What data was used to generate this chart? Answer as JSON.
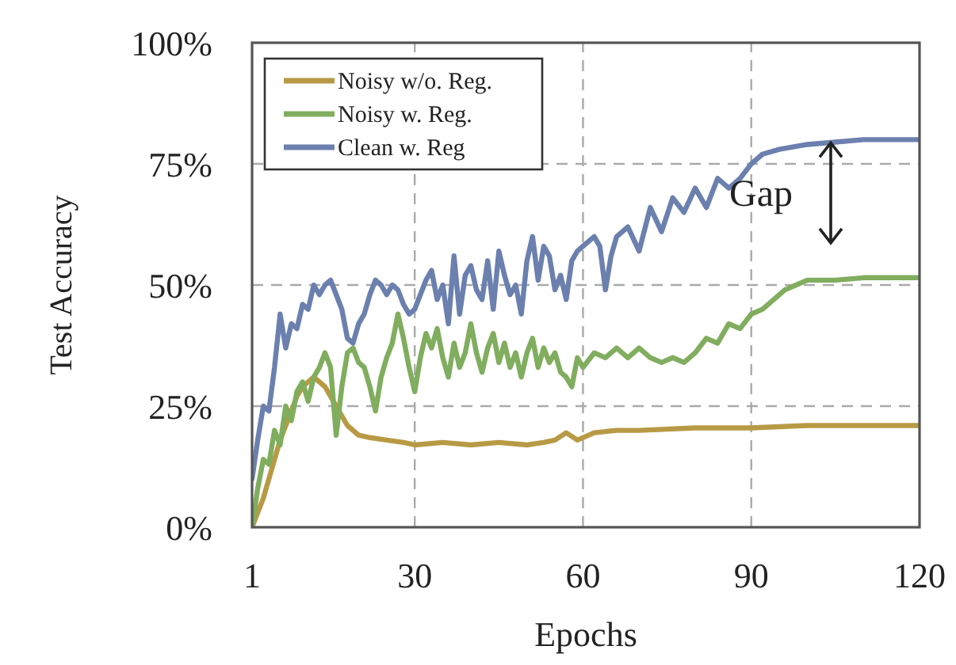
{
  "chart_data": {
    "type": "line",
    "xlabel": "Epochs",
    "ylabel": "Test Accuracy",
    "xlim": [
      1,
      120
    ],
    "ylim": [
      0,
      100
    ],
    "xticks": [
      1,
      30,
      60,
      90,
      120
    ],
    "yticks": [
      {
        "value": 0,
        "label": "0%"
      },
      {
        "value": 25,
        "label": "25%"
      },
      {
        "value": 50,
        "label": "50%"
      },
      {
        "value": 75,
        "label": "75%"
      },
      {
        "value": 100,
        "label": "100%"
      }
    ],
    "grid": true,
    "legend": "top left",
    "line_style": "solid",
    "marker": "none",
    "annotations": [
      "Gap"
    ],
    "series": [
      {
        "name": "Noisy w/o. Reg.",
        "color": "#b89a45",
        "x": [
          1,
          2,
          3,
          4,
          5,
          6,
          7,
          8,
          9,
          10,
          11,
          12,
          13,
          14,
          15,
          16,
          17,
          18,
          20,
          22,
          25,
          28,
          30,
          35,
          40,
          45,
          50,
          53,
          55,
          57,
          59,
          62,
          66,
          70,
          80,
          90,
          100,
          110,
          120
        ],
        "values": [
          0,
          3,
          6,
          10,
          14,
          18,
          21,
          24,
          27,
          29,
          30,
          31,
          30,
          29,
          27,
          25,
          23,
          21,
          19,
          18.5,
          18,
          17.5,
          17,
          17.5,
          17,
          17.5,
          17,
          17.5,
          18,
          19.5,
          18,
          19.5,
          20,
          20,
          20.5,
          20.5,
          21,
          21,
          21
        ]
      },
      {
        "name": "Noisy w. Reg.",
        "color": "#80ad5e",
        "x": [
          1,
          2,
          3,
          4,
          5,
          6,
          7,
          8,
          9,
          10,
          11,
          12,
          13,
          14,
          15,
          16,
          17,
          18,
          19,
          20,
          21,
          22,
          23,
          24,
          25,
          26,
          27,
          28,
          29,
          30,
          31,
          32,
          33,
          34,
          35,
          36,
          37,
          38,
          39,
          40,
          41,
          42,
          43,
          44,
          45,
          46,
          47,
          48,
          49,
          50,
          51,
          52,
          53,
          54,
          55,
          56,
          57,
          58,
          59,
          60,
          62,
          64,
          66,
          68,
          70,
          72,
          74,
          76,
          78,
          80,
          82,
          84,
          86,
          88,
          90,
          92,
          94,
          96,
          98,
          100,
          105,
          110,
          115,
          120
        ],
        "values": [
          0,
          8,
          14,
          13,
          20,
          17,
          25,
          22,
          28,
          30,
          26,
          31,
          33,
          36,
          33,
          19,
          29,
          36,
          37,
          34,
          33,
          29,
          24,
          31,
          35,
          38,
          44,
          39,
          33,
          28,
          35,
          40,
          37,
          41,
          35,
          31,
          38,
          33,
          36,
          42,
          36,
          32,
          37,
          40,
          34,
          38,
          33,
          36,
          31,
          36,
          39,
          33,
          37,
          34,
          36,
          32,
          31,
          29,
          35,
          33,
          36,
          35,
          37,
          35,
          37,
          35,
          34,
          35,
          34,
          36,
          39,
          38,
          42,
          41,
          44,
          45,
          47,
          49,
          50,
          51,
          51,
          51.5,
          51.5,
          51.5
        ]
      },
      {
        "name": "Clean w. Reg",
        "color": "#6b80ae",
        "x": [
          1,
          2,
          3,
          4,
          5,
          6,
          7,
          8,
          9,
          10,
          11,
          12,
          13,
          14,
          15,
          16,
          17,
          18,
          19,
          20,
          21,
          22,
          23,
          24,
          25,
          26,
          27,
          28,
          29,
          30,
          31,
          32,
          33,
          34,
          35,
          36,
          37,
          38,
          39,
          40,
          41,
          42,
          43,
          44,
          45,
          46,
          47,
          48,
          49,
          50,
          51,
          52,
          53,
          54,
          55,
          56,
          57,
          58,
          59,
          60,
          61,
          62,
          63,
          64,
          65,
          66,
          68,
          70,
          72,
          74,
          76,
          78,
          80,
          82,
          84,
          86,
          88,
          90,
          92,
          95,
          100,
          105,
          110,
          115,
          120
        ],
        "values": [
          10,
          18,
          25,
          24,
          33,
          44,
          37,
          42,
          41,
          46,
          45,
          50,
          48,
          50,
          51,
          48,
          45,
          39,
          38,
          42,
          44,
          48,
          51,
          50,
          48,
          50,
          49,
          46,
          44,
          45,
          48,
          51,
          53,
          47,
          50,
          42,
          56,
          44,
          52,
          54,
          49,
          47,
          55,
          45,
          57,
          52,
          48,
          50,
          44,
          55,
          60,
          51,
          58,
          56,
          49,
          52,
          47,
          55,
          57,
          58,
          59,
          60,
          58,
          49,
          56,
          60,
          62,
          57,
          66,
          61,
          68,
          65,
          70,
          66,
          72,
          70,
          72,
          75,
          77,
          78,
          79,
          79.5,
          80,
          80,
          80
        ]
      }
    ]
  }
}
